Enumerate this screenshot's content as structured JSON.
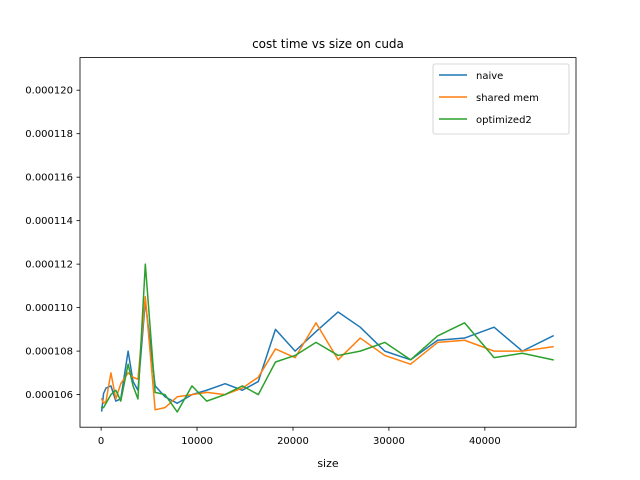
{
  "chart_data": {
    "type": "line",
    "title": "cost time vs size on cuda",
    "xlabel": "size",
    "ylabel": "",
    "xlim": [
      -2200,
      49500
    ],
    "ylim": [
      0.0001045,
      0.0001215
    ],
    "xticks": [
      0,
      10000,
      20000,
      30000,
      40000
    ],
    "xtick_labels": [
      "0",
      "10000",
      "20000",
      "30000",
      "40000"
    ],
    "yticks": [
      0.000106,
      0.000108,
      0.00011,
      0.000112,
      0.000114,
      0.000116,
      0.000118,
      0.00012
    ],
    "ytick_labels": [
      "0.000106",
      "0.000108",
      "0.000110",
      "0.000112",
      "0.000114",
      "0.000116",
      "0.000118",
      "0.000120"
    ],
    "grid": false,
    "legend_position": "top-right",
    "x": [
      64,
      256,
      512,
      1024,
      1536,
      2048,
      2816,
      3328,
      3840,
      4608,
      5632,
      6656,
      7936,
      9472,
      11008,
      12928,
      14720,
      16384,
      18176,
      20224,
      22400,
      24704,
      27008,
      29568,
      32256,
      35072,
      37888,
      40960,
      43904,
      47104
    ],
    "series": [
      {
        "name": "naive",
        "color": "#1f77b4",
        "values": [
          0.00010525,
          0.00010605,
          0.0001063,
          0.0001064,
          0.0001057,
          0.0001058,
          0.000108,
          0.0001066,
          0.0001062,
          0.0001103,
          0.0001064,
          0.0001059,
          0.0001056,
          0.000106,
          0.0001062,
          0.0001065,
          0.0001062,
          0.0001066,
          0.000109,
          0.000108,
          0.0001089,
          0.0001098,
          0.0001091,
          0.000108,
          0.0001076,
          0.0001085,
          0.0001086,
          0.0001091,
          0.000108,
          0.0001087
        ]
      },
      {
        "name": "shared mem",
        "color": "#ff7f0e",
        "values": [
          0.0001058,
          0.0001056,
          0.0001057,
          0.000107,
          0.0001058,
          0.0001065,
          0.000107,
          0.0001068,
          0.0001067,
          0.0001105,
          0.0001053,
          0.0001054,
          0.0001059,
          0.000106,
          0.0001061,
          0.000106,
          0.0001063,
          0.0001068,
          0.0001081,
          0.0001077,
          0.0001093,
          0.0001076,
          0.0001086,
          0.0001078,
          0.0001074,
          0.0001084,
          0.0001085,
          0.000108,
          0.000108,
          0.0001082
        ]
      },
      {
        "name": "optimized2",
        "color": "#2ca02c",
        "values": [
          0.0001054,
          0.0001054,
          0.0001056,
          0.000106,
          0.0001062,
          0.0001057,
          0.0001074,
          0.0001064,
          0.0001058,
          0.000112,
          0.0001061,
          0.000106,
          0.0001052,
          0.0001064,
          0.0001057,
          0.000106,
          0.0001064,
          0.000106,
          0.0001075,
          0.0001078,
          0.0001084,
          0.0001078,
          0.000108,
          0.0001084,
          0.0001076,
          0.0001087,
          0.0001093,
          0.0001077,
          0.0001079,
          0.0001076
        ]
      }
    ]
  }
}
